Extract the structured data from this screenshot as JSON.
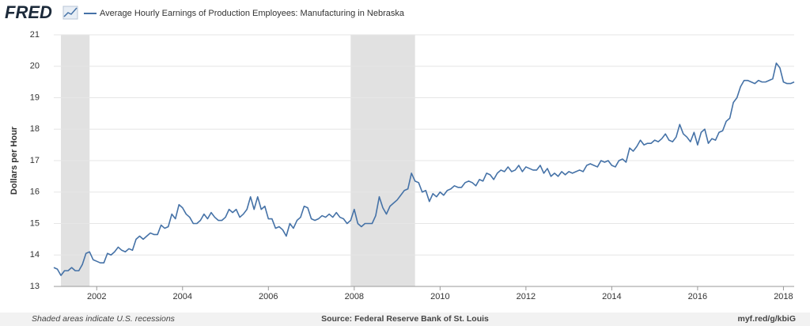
{
  "chart_data": {
    "type": "line",
    "logo": "FRED",
    "ylabel": "Dollars per Hour",
    "note": "Shaded areas indicate U.S. recessions",
    "source": "Source: Federal Reserve Bank of St. Louis",
    "link": "myf.red/g/kbiG",
    "xlim": [
      "2001-01",
      "2018-04"
    ],
    "xticks": [
      2002,
      2004,
      2006,
      2008,
      2010,
      2012,
      2014,
      2016,
      2018
    ],
    "ylim": [
      13,
      21
    ],
    "yticks": [
      13,
      14,
      15,
      16,
      17,
      18,
      19,
      20,
      21
    ],
    "grid": true,
    "recession_color": "#e1e1e1",
    "recessions": [
      {
        "start": "2001-03",
        "end": "2001-11"
      },
      {
        "start": "2007-12",
        "end": "2009-06"
      }
    ],
    "x": [
      "2001-01",
      "2001-02",
      "2001-03",
      "2001-04",
      "2001-05",
      "2001-06",
      "2001-07",
      "2001-08",
      "2001-09",
      "2001-10",
      "2001-11",
      "2001-12",
      "2002-01",
      "2002-02",
      "2002-03",
      "2002-04",
      "2002-05",
      "2002-06",
      "2002-07",
      "2002-08",
      "2002-09",
      "2002-10",
      "2002-11",
      "2002-12",
      "2003-01",
      "2003-02",
      "2003-03",
      "2003-04",
      "2003-05",
      "2003-06",
      "2003-07",
      "2003-08",
      "2003-09",
      "2003-10",
      "2003-11",
      "2003-12",
      "2004-01",
      "2004-02",
      "2004-03",
      "2004-04",
      "2004-05",
      "2004-06",
      "2004-07",
      "2004-08",
      "2004-09",
      "2004-10",
      "2004-11",
      "2004-12",
      "2005-01",
      "2005-02",
      "2005-03",
      "2005-04",
      "2005-05",
      "2005-06",
      "2005-07",
      "2005-08",
      "2005-09",
      "2005-10",
      "2005-11",
      "2005-12",
      "2006-01",
      "2006-02",
      "2006-03",
      "2006-04",
      "2006-05",
      "2006-06",
      "2006-07",
      "2006-08",
      "2006-09",
      "2006-10",
      "2006-11",
      "2006-12",
      "2007-01",
      "2007-02",
      "2007-03",
      "2007-04",
      "2007-05",
      "2007-06",
      "2007-07",
      "2007-08",
      "2007-09",
      "2007-10",
      "2007-11",
      "2007-12",
      "2008-01",
      "2008-02",
      "2008-03",
      "2008-04",
      "2008-05",
      "2008-06",
      "2008-07",
      "2008-08",
      "2008-09",
      "2008-10",
      "2008-11",
      "2008-12",
      "2009-01",
      "2009-02",
      "2009-03",
      "2009-04",
      "2009-05",
      "2009-06",
      "2009-07",
      "2009-08",
      "2009-09",
      "2009-10",
      "2009-11",
      "2009-12",
      "2010-01",
      "2010-02",
      "2010-03",
      "2010-04",
      "2010-05",
      "2010-06",
      "2010-07",
      "2010-08",
      "2010-09",
      "2010-10",
      "2010-11",
      "2010-12",
      "2011-01",
      "2011-02",
      "2011-03",
      "2011-04",
      "2011-05",
      "2011-06",
      "2011-07",
      "2011-08",
      "2011-09",
      "2011-10",
      "2011-11",
      "2011-12",
      "2012-01",
      "2012-02",
      "2012-03",
      "2012-04",
      "2012-05",
      "2012-06",
      "2012-07",
      "2012-08",
      "2012-09",
      "2012-10",
      "2012-11",
      "2012-12",
      "2013-01",
      "2013-02",
      "2013-03",
      "2013-04",
      "2013-05",
      "2013-06",
      "2013-07",
      "2013-08",
      "2013-09",
      "2013-10",
      "2013-11",
      "2013-12",
      "2014-01",
      "2014-02",
      "2014-03",
      "2014-04",
      "2014-05",
      "2014-06",
      "2014-07",
      "2014-08",
      "2014-09",
      "2014-10",
      "2014-11",
      "2014-12",
      "2015-01",
      "2015-02",
      "2015-03",
      "2015-04",
      "2015-05",
      "2015-06",
      "2015-07",
      "2015-08",
      "2015-09",
      "2015-10",
      "2015-11",
      "2015-12",
      "2016-01",
      "2016-02",
      "2016-03",
      "2016-04",
      "2016-05",
      "2016-06",
      "2016-07",
      "2016-08",
      "2016-09",
      "2016-10",
      "2016-11",
      "2016-12",
      "2017-01",
      "2017-02",
      "2017-03",
      "2017-04",
      "2017-05",
      "2017-06",
      "2017-07",
      "2017-08",
      "2017-09",
      "2017-10",
      "2017-11",
      "2017-12",
      "2018-01",
      "2018-02",
      "2018-03",
      "2018-04"
    ],
    "series": [
      {
        "name": "Average Hourly Earnings of Production Employees: Manufacturing in Nebraska",
        "color": "#4572a7",
        "values": [
          13.6,
          13.55,
          13.35,
          13.5,
          13.5,
          13.6,
          13.5,
          13.5,
          13.7,
          14.05,
          14.1,
          13.85,
          13.8,
          13.75,
          13.75,
          14.05,
          14.0,
          14.1,
          14.25,
          14.15,
          14.1,
          14.2,
          14.15,
          14.5,
          14.6,
          14.5,
          14.6,
          14.7,
          14.65,
          14.65,
          14.95,
          14.85,
          14.9,
          15.3,
          15.15,
          15.6,
          15.5,
          15.3,
          15.2,
          15.0,
          15.0,
          15.1,
          15.3,
          15.15,
          15.35,
          15.2,
          15.1,
          15.1,
          15.2,
          15.45,
          15.35,
          15.45,
          15.2,
          15.3,
          15.45,
          15.85,
          15.45,
          15.85,
          15.45,
          15.55,
          15.15,
          15.15,
          14.85,
          14.9,
          14.8,
          14.6,
          15.0,
          14.85,
          15.1,
          15.2,
          15.55,
          15.5,
          15.15,
          15.1,
          15.15,
          15.25,
          15.2,
          15.3,
          15.2,
          15.35,
          15.2,
          15.15,
          15.0,
          15.1,
          15.45,
          15.0,
          14.9,
          15.0,
          15.0,
          15.0,
          15.25,
          15.85,
          15.5,
          15.3,
          15.55,
          15.65,
          15.75,
          15.9,
          16.05,
          16.1,
          16.6,
          16.35,
          16.3,
          16.0,
          16.05,
          15.7,
          15.95,
          15.85,
          16.0,
          15.9,
          16.05,
          16.1,
          16.2,
          16.15,
          16.15,
          16.3,
          16.35,
          16.3,
          16.2,
          16.4,
          16.35,
          16.6,
          16.55,
          16.4,
          16.6,
          16.7,
          16.65,
          16.8,
          16.65,
          16.7,
          16.85,
          16.65,
          16.8,
          16.75,
          16.7,
          16.7,
          16.85,
          16.6,
          16.75,
          16.5,
          16.6,
          16.5,
          16.65,
          16.55,
          16.65,
          16.6,
          16.65,
          16.7,
          16.65,
          16.85,
          16.9,
          16.85,
          16.8,
          17.0,
          16.95,
          17.0,
          16.85,
          16.8,
          17.0,
          17.05,
          16.95,
          17.4,
          17.3,
          17.45,
          17.65,
          17.5,
          17.55,
          17.55,
          17.65,
          17.6,
          17.7,
          17.85,
          17.65,
          17.6,
          17.75,
          18.15,
          17.85,
          17.75,
          17.6,
          17.9,
          17.5,
          17.9,
          18.0,
          17.55,
          17.7,
          17.65,
          17.9,
          17.95,
          18.25,
          18.35,
          18.85,
          19.0,
          19.35,
          19.55,
          19.55,
          19.5,
          19.45,
          19.55,
          19.5,
          19.5,
          19.55,
          19.6,
          20.1,
          19.95,
          19.5,
          19.45,
          19.45,
          19.5
        ]
      }
    ]
  }
}
